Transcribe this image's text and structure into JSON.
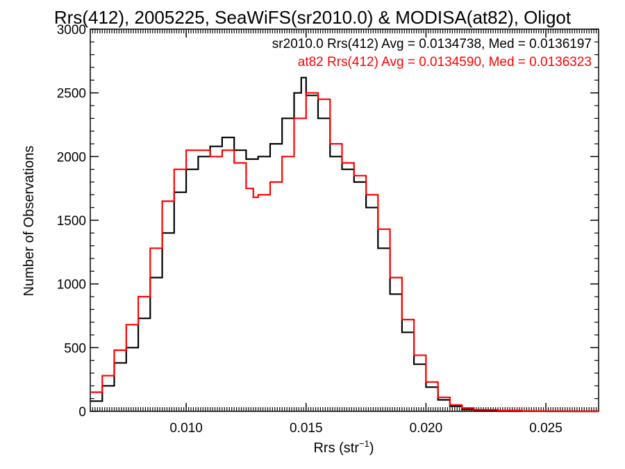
{
  "chart_data": {
    "type": "line",
    "title": "Rrs(412), 2005225, SeaWiFS(sr2010.0) & MODISA(at82), Oligot",
    "xlabel": "Rrs (str",
    "xlabel_sup": "−1",
    "xlabel_close": ")",
    "ylabel": "Number of Observations",
    "xlim": [
      0.006,
      0.0272
    ],
    "ylim": [
      0,
      3000
    ],
    "x_ticks": [
      0.01,
      0.015,
      0.02,
      0.025
    ],
    "x_tick_labels": [
      "0.010",
      "0.015",
      "0.020",
      "0.025"
    ],
    "y_ticks": [
      0,
      500,
      1000,
      1500,
      2000,
      2500,
      3000
    ],
    "y_tick_labels": [
      "0",
      "500",
      "1000",
      "1500",
      "2000",
      "2500",
      "3000"
    ],
    "grid": false,
    "legend_position": "top-right",
    "series": [
      {
        "name": "sr2010.0 Rrs(412) Avg = 0.0134738, Med = 0.0136197",
        "color": "#000000",
        "x": [
          0.006,
          0.0065,
          0.007,
          0.0075,
          0.008,
          0.0085,
          0.009,
          0.0095,
          0.01,
          0.0105,
          0.011,
          0.0115,
          0.012,
          0.0125,
          0.013,
          0.0135,
          0.014,
          0.0145,
          0.0148,
          0.015,
          0.0155,
          0.016,
          0.0165,
          0.017,
          0.0175,
          0.018,
          0.0185,
          0.019,
          0.0195,
          0.02,
          0.0205,
          0.021,
          0.0215,
          0.022,
          0.023,
          0.024,
          0.025,
          0.026,
          0.0272
        ],
        "y": [
          80,
          200,
          380,
          500,
          730,
          1050,
          1400,
          1720,
          1900,
          2000,
          2080,
          2150,
          2050,
          1980,
          2000,
          2100,
          2300,
          2500,
          2620,
          2480,
          2300,
          2000,
          1900,
          1800,
          1600,
          1280,
          920,
          620,
          370,
          190,
          90,
          40,
          15,
          5,
          2,
          1,
          0,
          0,
          0
        ]
      },
      {
        "name": "at82 Rrs(412) Avg = 0.0134590, Med = 0.0136323",
        "color": "#ff0000",
        "x": [
          0.006,
          0.0065,
          0.007,
          0.0075,
          0.008,
          0.0085,
          0.009,
          0.0095,
          0.01,
          0.0105,
          0.011,
          0.0115,
          0.012,
          0.0125,
          0.0128,
          0.013,
          0.0135,
          0.014,
          0.0145,
          0.015,
          0.0155,
          0.016,
          0.0165,
          0.017,
          0.0175,
          0.018,
          0.0185,
          0.019,
          0.0195,
          0.02,
          0.0205,
          0.021,
          0.0215,
          0.022,
          0.023,
          0.024,
          0.025,
          0.026,
          0.0272
        ],
        "y": [
          150,
          280,
          480,
          680,
          900,
          1280,
          1650,
          1900,
          2050,
          2050,
          2000,
          2050,
          1950,
          1750,
          1680,
          1700,
          1800,
          2000,
          2300,
          2500,
          2450,
          2100,
          1950,
          1850,
          1700,
          1430,
          1050,
          720,
          440,
          230,
          110,
          50,
          25,
          12,
          6,
          2,
          1,
          0,
          0
        ]
      }
    ]
  }
}
